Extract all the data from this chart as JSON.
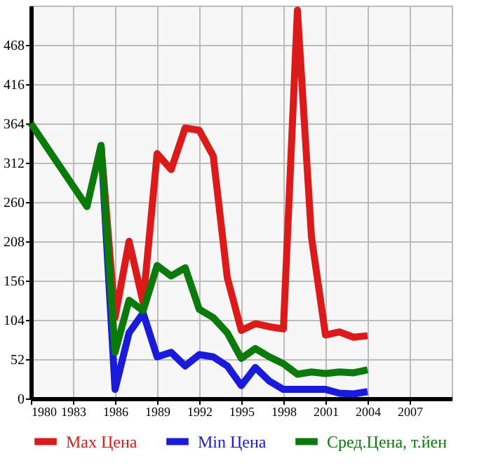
{
  "chart_data": {
    "type": "line",
    "x": [
      1980,
      1984,
      1985,
      1986,
      1987,
      1988,
      1989,
      1990,
      1991,
      1992,
      1993,
      1994,
      1995,
      1996,
      1997,
      1998,
      1999,
      2000,
      2001,
      2002,
      2003,
      2004
    ],
    "series": [
      {
        "name": "Max Цена",
        "color": "#dd1a1a",
        "values": [
          null,
          null,
          335,
          107,
          208,
          127,
          324,
          303,
          358,
          355,
          321,
          160,
          90,
          99,
          95,
          92,
          514,
          214,
          84,
          88,
          81,
          83
        ]
      },
      {
        "name": "Min Цена",
        "color": "#1a1add",
        "values": [
          null,
          null,
          335,
          12,
          87,
          113,
          55,
          61,
          43,
          58,
          55,
          43,
          17,
          41,
          23,
          12,
          12,
          12,
          12,
          7,
          6,
          9
        ]
      },
      {
        "name": "Сред.Цена, т.йен",
        "color": "#0a7a0a",
        "values": [
          364,
          254,
          335,
          61,
          130,
          116,
          176,
          162,
          173,
          118,
          107,
          87,
          53,
          66,
          55,
          46,
          32,
          35,
          33,
          35,
          34,
          38
        ]
      }
    ],
    "xlim": [
      1980,
      2010
    ],
    "xticks": [
      1980,
      1983,
      1986,
      1989,
      1992,
      1995,
      1998,
      2001,
      2004,
      2007
    ],
    "ylim": [
      0,
      520
    ],
    "yticks": [
      0,
      52,
      104,
      156,
      208,
      260,
      312,
      364,
      416,
      468
    ],
    "grid": true,
    "legend": "bottom",
    "line_style": "solid",
    "marker": "none"
  }
}
